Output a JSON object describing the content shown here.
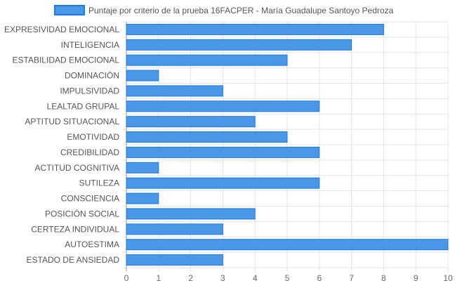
{
  "chart_data": {
    "type": "bar",
    "orientation": "horizontal",
    "legend_position": "top",
    "grid": true,
    "xlim": [
      0,
      10
    ],
    "x_ticks": [
      "0",
      "1",
      "2",
      "3",
      "4",
      "5",
      "6",
      "7",
      "8",
      "9",
      "10"
    ],
    "categories": [
      "EXPRESIVIDAD EMOCIONAL",
      "INTELIGENCIA",
      "ESTABILIDAD EMOCIONAL",
      "DOMINACIÓN",
      "IMPULSIVIDAD",
      "LEALTAD GRUPAL",
      "APTITUD SITUACIONAL",
      "EMOTIVIDAD",
      "CREDIBILIDAD",
      "ACTITUD COGNITIVA",
      "SUTILEZA",
      "CONSCIENCIA",
      "POSICIÓN SOCIAL",
      "CERTEZA INDIVIDUAL",
      "AUTOESTIMA",
      "ESTADO DE ANSIEDAD"
    ],
    "series": [
      {
        "name": "Puntaje por criterio de la prueba 16FACPER - María Guadalupe Santoyo Pedroza",
        "color": "#4a97e8",
        "border_color": "#1f7ae0",
        "values": [
          8,
          7,
          5,
          1,
          3,
          6,
          4,
          5,
          6,
          1,
          6,
          1,
          4,
          3,
          10,
          3
        ]
      }
    ]
  }
}
